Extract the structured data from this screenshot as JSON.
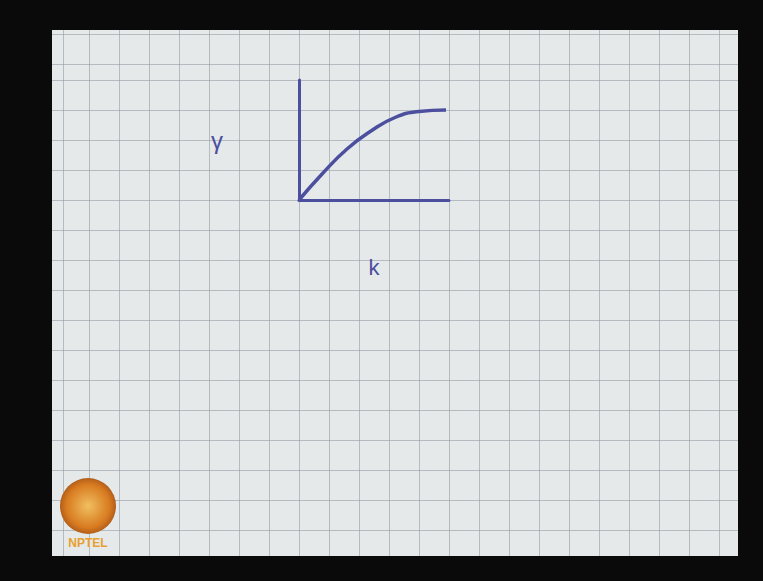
{
  "chart_data": {
    "type": "line",
    "x_label": "k",
    "y_label": "γ",
    "x": [
      0,
      0.8,
      1.6,
      2.4,
      3.2,
      4.0,
      4.9
    ],
    "values": [
      0,
      0.9,
      1.7,
      2.3,
      2.75,
      2.95,
      3.0
    ],
    "color": "#4b4f9e",
    "xlim": [
      0,
      5
    ],
    "ylim": [
      0,
      4
    ],
    "grid": false,
    "tick_labels": false
  },
  "logo_text": "NPTEL"
}
